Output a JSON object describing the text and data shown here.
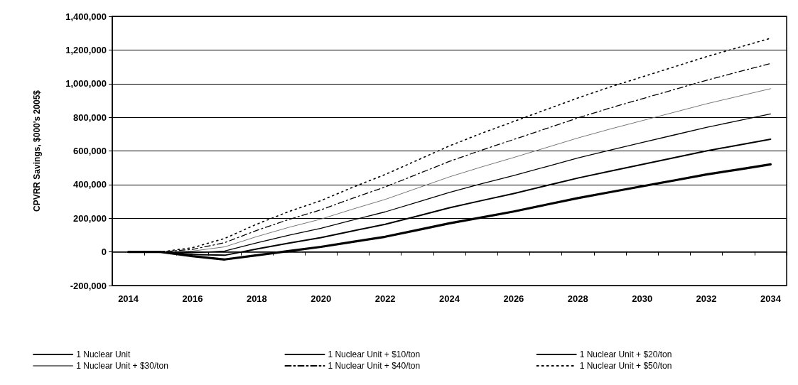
{
  "chart_data": {
    "type": "line",
    "ylabel": "CPVRR Savings, $000's 2005$",
    "categories": [
      "2014",
      null,
      "2016",
      null,
      "2018",
      null,
      "2020",
      null,
      "2022",
      null,
      "2024",
      null,
      "2026",
      null,
      "2028",
      null,
      "2030",
      null,
      "2032",
      null,
      "2034"
    ],
    "ylim": [
      -200000,
      1400000
    ],
    "yticks": [
      {
        "value": -200000,
        "label": "-200,000"
      },
      0,
      {
        "value": 200000,
        "label": "200,000"
      },
      {
        "value": 400000,
        "label": "400,000"
      },
      {
        "value": 600000,
        "label": "600,000"
      },
      {
        "value": 800000,
        "label": "800,000"
      },
      {
        "value": 1000000,
        "label": "1,000,000"
      },
      {
        "value": 1200000,
        "label": "1,200,000"
      },
      {
        "value": 1400000,
        "label": "1,400,000"
      }
    ],
    "grid": "y",
    "legend": "bottom",
    "marker": "none",
    "series": [
      {
        "name": "1 Nuclear Unit",
        "color": "#000000",
        "line_style": "solid",
        "values": [
          0,
          0,
          -25000,
          -45000,
          -20000,
          5000,
          30000,
          60000,
          90000,
          130000,
          170000,
          205000,
          240000,
          280000,
          320000,
          355000,
          390000,
          425000,
          460000,
          490000,
          520000
        ]
      },
      {
        "name": "1 Nuclear Unit + $10/ton",
        "color": "#000000",
        "line_style": "solid",
        "values": [
          0,
          0,
          -15000,
          -20000,
          17000,
          52000,
          85000,
          125000,
          164000,
          213000,
          262000,
          305000,
          347000,
          393000,
          439000,
          480000,
          520000,
          560000,
          600000,
          635000,
          670000
        ]
      },
      {
        "name": "1 Nuclear Unit + $20/ton",
        "color": "#000000",
        "line_style": "solid",
        "values": [
          0,
          0,
          -5000,
          5000,
          54000,
          99000,
          140000,
          190000,
          238000,
          296000,
          354000,
          405000,
          454000,
          506000,
          558000,
          605000,
          650000,
          695000,
          740000,
          780000,
          820000
        ]
      },
      {
        "name": "1 Nuclear Unit + $30/ton",
        "color": "#777777",
        "line_style": "solid",
        "values": [
          0,
          0,
          5000,
          30000,
          91000,
          146000,
          195000,
          255000,
          312000,
          379000,
          446000,
          505000,
          561000,
          619000,
          677000,
          730000,
          780000,
          830000,
          880000,
          925000,
          970000
        ]
      },
      {
        "name": "1 Nuclear Unit + $40/ton",
        "color": "#000000",
        "line_style": "dashed",
        "values": [
          0,
          0,
          15000,
          55000,
          128000,
          193000,
          250000,
          320000,
          386000,
          462000,
          538000,
          605000,
          668000,
          732000,
          796000,
          855000,
          910000,
          965000,
          1020000,
          1070000,
          1120000
        ]
      },
      {
        "name": "1 Nuclear Unit + $50/ton",
        "color": "#000000",
        "line_style": "dotted",
        "values": [
          0,
          0,
          25000,
          80000,
          165000,
          240000,
          305000,
          385000,
          460000,
          545000,
          630000,
          705000,
          775000,
          845000,
          915000,
          980000,
          1040000,
          1100000,
          1160000,
          1215000,
          1270000
        ]
      }
    ]
  }
}
